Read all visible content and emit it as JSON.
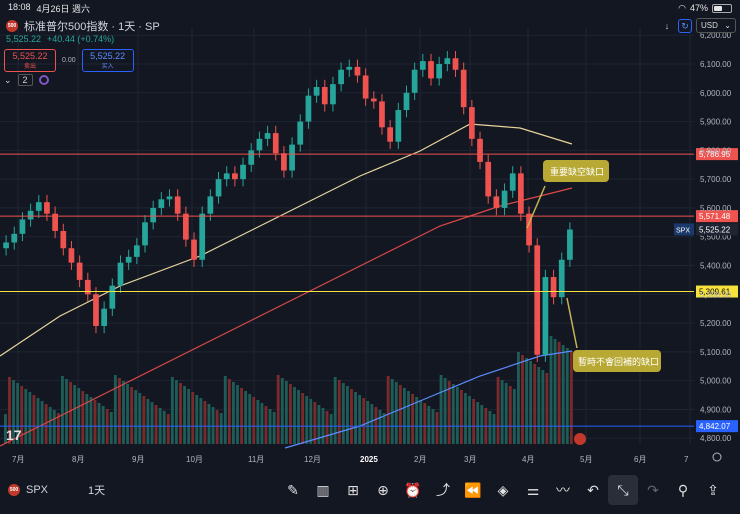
{
  "status": {
    "time": "18:08",
    "date": "4月26日 週六",
    "battery": "47%",
    "battery_level": 0.47
  },
  "header": {
    "logo": "500",
    "title": "标准普尔500指数 · 1天 · SP",
    "last": "5,525.22",
    "change": "+40.44 (+0.74%)"
  },
  "trade": {
    "sell_price": "5,525.22",
    "sell_label": "卖出",
    "spread": "0.00",
    "buy_price": "5,525.22",
    "buy_label": "买入"
  },
  "indicators": {
    "count": "2"
  },
  "currency": "USD",
  "icons": {
    "down": "↓",
    "sync": "↻",
    "tv_logo": "17"
  },
  "chart_data": {
    "type": "candlestick",
    "y_ticks": [
      "6,200.00",
      "6,100.00",
      "6,000.00",
      "5,900.00",
      "5,800.00",
      "5,700.00",
      "5,600.00",
      "5,500.00",
      "5,400.00",
      "5,300.00",
      "5,200.00",
      "5,100.00",
      "5,000.00",
      "4,900.00",
      "4,800.00"
    ],
    "y_range": [
      4780,
      6225
    ],
    "x_ticks": [
      "7月",
      "8月",
      "9月",
      "10月",
      "11月",
      "12月",
      "2025",
      "2月",
      "3月",
      "4月",
      "5月",
      "6月",
      "7"
    ],
    "levels": [
      {
        "value": 5786.95,
        "label": "5,786.95",
        "color": "#ef5350"
      },
      {
        "value": 5571.48,
        "label": "5,571.48",
        "color": "#ef5350"
      },
      {
        "value": 5309.61,
        "label": "5,309.61",
        "color": "#f7e23c"
      },
      {
        "value": 4842.07,
        "label": "4,842.07",
        "color": "#2962ff"
      }
    ],
    "last": {
      "symbol": "SPX",
      "value": 5525.22,
      "label": "5,525.22"
    },
    "annotations": [
      {
        "text": "重要缺空缺口"
      },
      {
        "text": "暫時不會回補的缺口"
      }
    ],
    "closes": [
      5480,
      5510,
      5560,
      5590,
      5620,
      5580,
      5520,
      5460,
      5410,
      5350,
      5300,
      5190,
      5250,
      5330,
      5410,
      5430,
      5470,
      5550,
      5600,
      5630,
      5640,
      5580,
      5490,
      5420,
      5580,
      5640,
      5700,
      5720,
      5700,
      5750,
      5800,
      5840,
      5860,
      5790,
      5730,
      5820,
      5900,
      5990,
      6020,
      5960,
      6030,
      6080,
      6090,
      6060,
      5980,
      5970,
      5880,
      5830,
      5940,
      6000,
      6080,
      6110,
      6050,
      6100,
      6120,
      6080,
      5950,
      5840,
      5760,
      5640,
      5600,
      5660,
      5720,
      5580,
      5470,
      5090,
      5360,
      5290,
      5420,
      5525
    ]
  },
  "toolbar": {
    "symbol_logo": "500",
    "symbol": "SPX",
    "interval": "1天",
    "tools": [
      "✎",
      "▥",
      "⊞",
      "⊕",
      "⏰",
      "⤴",
      "⏪",
      "◈",
      "⚌",
      "〰",
      "↶",
      "⤡",
      "↷",
      "⚲",
      "⇪"
    ]
  }
}
